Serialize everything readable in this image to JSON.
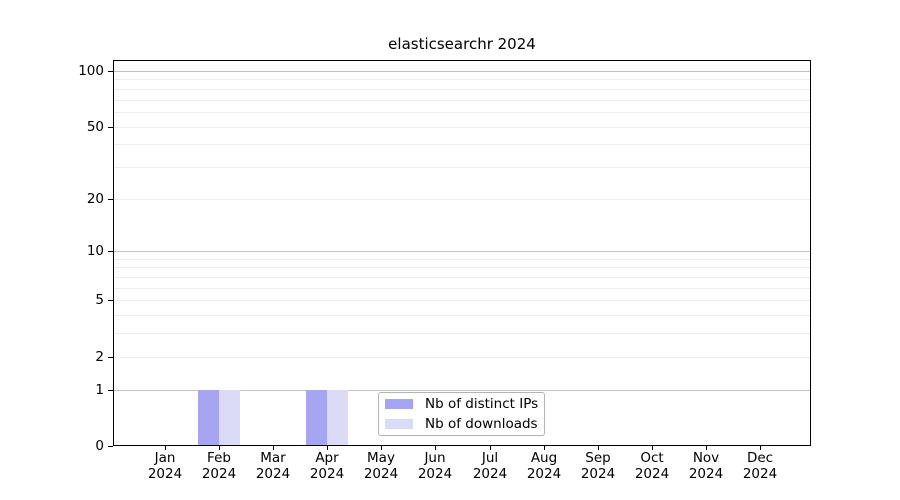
{
  "chart_data": {
    "type": "bar",
    "title": "elasticsearchr 2024",
    "categories": [
      "Jan",
      "Feb",
      "Mar",
      "Apr",
      "May",
      "Jun",
      "Jul",
      "Aug",
      "Sep",
      "Oct",
      "Nov",
      "Dec"
    ],
    "category_year": "2024",
    "series": [
      {
        "name": "Nb of distinct IPs",
        "color": "#a5a5f2",
        "values": [
          0,
          1,
          0,
          1,
          0,
          0,
          0,
          0,
          0,
          0,
          0,
          0
        ]
      },
      {
        "name": "Nb of downloads",
        "color": "#dbdbf8",
        "values": [
          0,
          1,
          0,
          1,
          0,
          0,
          0,
          0,
          0,
          0,
          0,
          0
        ]
      }
    ],
    "xlabel": "",
    "ylabel": "",
    "y_scale": "log1p",
    "ylim": [
      0,
      115
    ],
    "y_tick_values": [
      0,
      1,
      2,
      5,
      10,
      20,
      50,
      100
    ],
    "y_tick_labels": [
      "0",
      "1",
      "2",
      "5",
      "10",
      "20",
      "50",
      "100"
    ],
    "y_major_grid_values": [
      1,
      10,
      100
    ],
    "y_minor_grid_values": [
      2,
      3,
      4,
      5,
      6,
      7,
      8,
      9,
      20,
      30,
      40,
      50,
      60,
      70,
      80,
      90
    ],
    "grid": "on",
    "legend_position": "bottom-center",
    "colors": {
      "background": "#ffffff",
      "spine": "#000000",
      "major_grid": "#c2c2c2",
      "minor_grid": "#ededed",
      "legend_border": "#b3b3b3",
      "text": "#000000"
    }
  }
}
